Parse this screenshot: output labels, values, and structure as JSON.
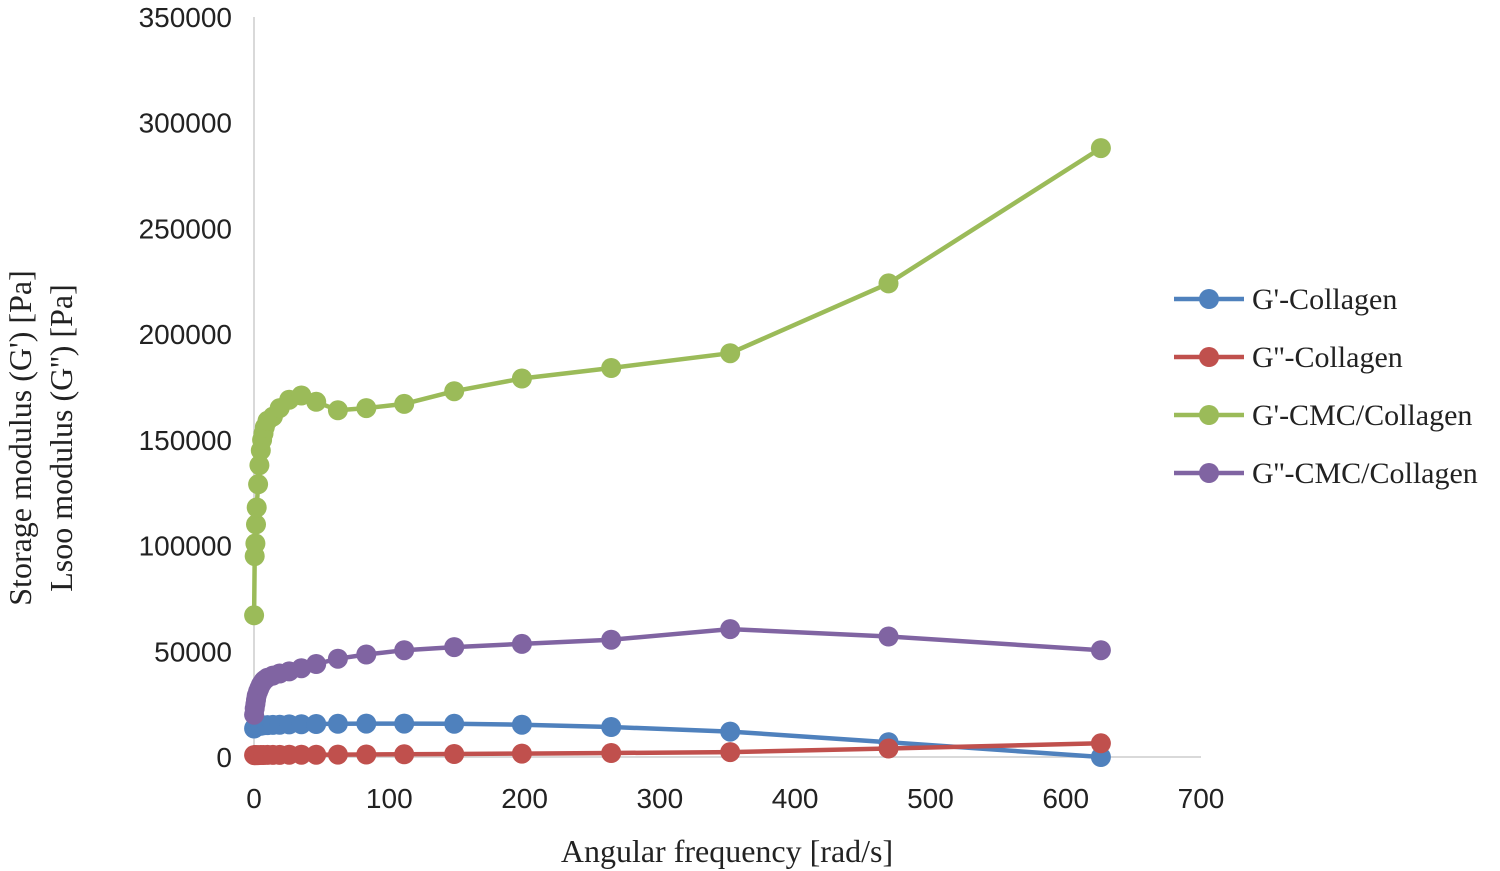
{
  "chart_data": {
    "type": "line",
    "title": "",
    "xlabel": "Angular frequency [rad/s]",
    "ylabel_lines": [
      "Storage modulus  (G') [Pa]",
      "Lsoo modulus (G'') [Pa]"
    ],
    "xlim": [
      0,
      700
    ],
    "ylim": [
      0,
      350000
    ],
    "xticks": [
      0,
      100,
      200,
      300,
      400,
      500,
      600,
      700
    ],
    "yticks": [
      0,
      50000,
      100000,
      150000,
      200000,
      250000,
      300000,
      350000
    ],
    "grid": false,
    "legend_position": "right",
    "series": [
      {
        "name": "G'-Collagen",
        "color": "#4F81BD",
        "x": [
          0.1,
          0.5,
          1,
          2,
          3,
          5,
          7,
          10,
          14,
          19,
          26,
          35,
          46,
          62,
          83,
          111,
          148,
          198,
          264,
          352,
          469,
          626
        ],
        "y": [
          13500,
          14000,
          14200,
          14400,
          14600,
          14800,
          15000,
          15100,
          15200,
          15300,
          15400,
          15500,
          15600,
          15700,
          15800,
          15800,
          15700,
          15300,
          14200,
          12000,
          7000,
          0
        ]
      },
      {
        "name": "G''-Collagen",
        "color": "#C0504D",
        "x": [
          0.1,
          0.5,
          1,
          2,
          3,
          5,
          7,
          10,
          14,
          19,
          26,
          35,
          46,
          62,
          83,
          111,
          148,
          198,
          264,
          352,
          469,
          626
        ],
        "y": [
          900,
          900,
          900,
          900,
          900,
          950,
          950,
          1000,
          1000,
          1000,
          1050,
          1100,
          1100,
          1150,
          1200,
          1300,
          1400,
          1600,
          1900,
          2300,
          4000,
          6500
        ]
      },
      {
        "name": "G'-CMC/Collagen",
        "color": "#9BBB59",
        "x": [
          0.1,
          0.5,
          1,
          1.5,
          2,
          3,
          4,
          5,
          6,
          7,
          8,
          10,
          14,
          19,
          26,
          35,
          46,
          62,
          83,
          111,
          148,
          198,
          264,
          352,
          469,
          626
        ],
        "y": [
          67000,
          95000,
          101000,
          110000,
          118000,
          129000,
          138000,
          145000,
          150000,
          153000,
          156000,
          159000,
          161000,
          165000,
          169000,
          171000,
          168000,
          164000,
          165000,
          167000,
          173000,
          179000,
          184000,
          191000,
          224000,
          288000
        ]
      },
      {
        "name": "G''-CMC/Collagen",
        "color": "#8064A2",
        "x": [
          0.1,
          0.5,
          1,
          1.5,
          2,
          3,
          4,
          5,
          6,
          7,
          8,
          10,
          14,
          19,
          26,
          35,
          46,
          62,
          83,
          111,
          148,
          198,
          264,
          352,
          469,
          626
        ],
        "y": [
          20000,
          23000,
          25000,
          27000,
          29000,
          31000,
          32500,
          34000,
          35000,
          36000,
          36500,
          37500,
          38500,
          39500,
          40500,
          42000,
          44000,
          46500,
          48500,
          50500,
          52000,
          53500,
          55500,
          60500,
          57000,
          50500
        ]
      }
    ]
  }
}
